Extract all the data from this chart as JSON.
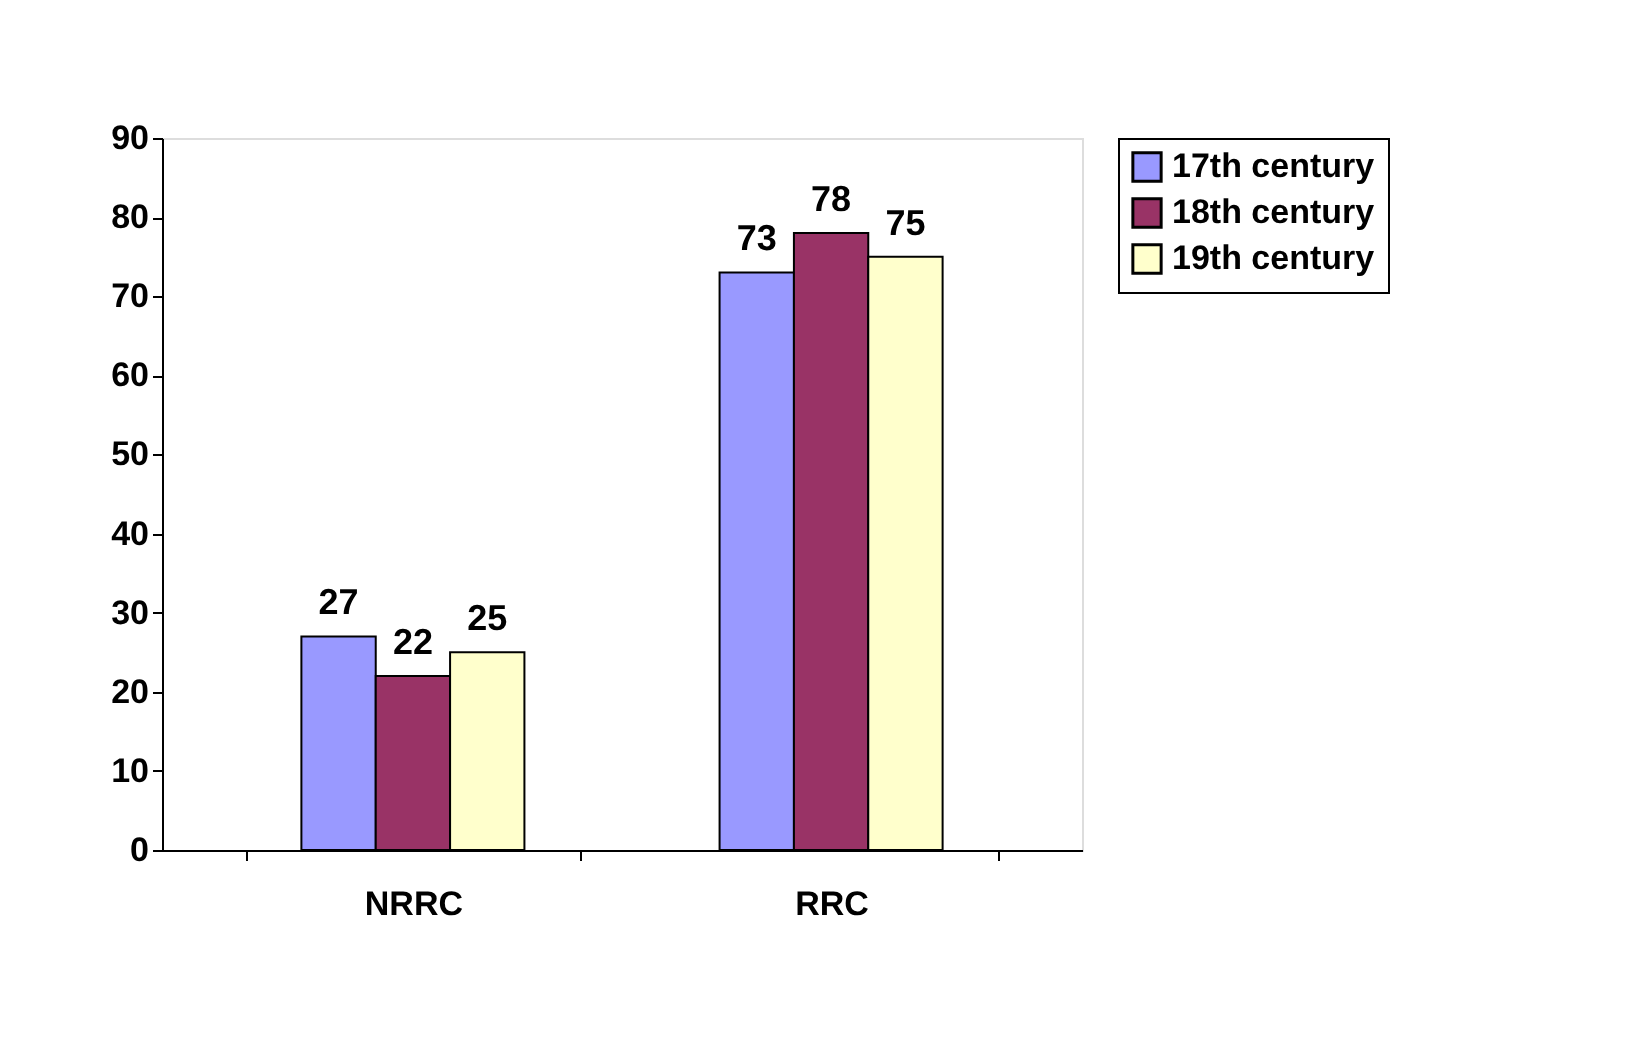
{
  "chart_data": {
    "type": "bar",
    "categories": [
      "NRRC",
      "RRC"
    ],
    "series": [
      {
        "name": "17th century",
        "color": "#9999ff",
        "values": [
          27,
          73
        ]
      },
      {
        "name": "18th century",
        "color": "#993366",
        "values": [
          22,
          78
        ]
      },
      {
        "name": "19th century",
        "color": "#ffffcc",
        "values": [
          25,
          75
        ]
      }
    ],
    "ylim": [
      0,
      90
    ],
    "yticks": [
      0,
      10,
      20,
      30,
      40,
      50,
      60,
      70,
      80,
      90
    ],
    "grid": false,
    "legend": "right",
    "data_labels": true
  }
}
